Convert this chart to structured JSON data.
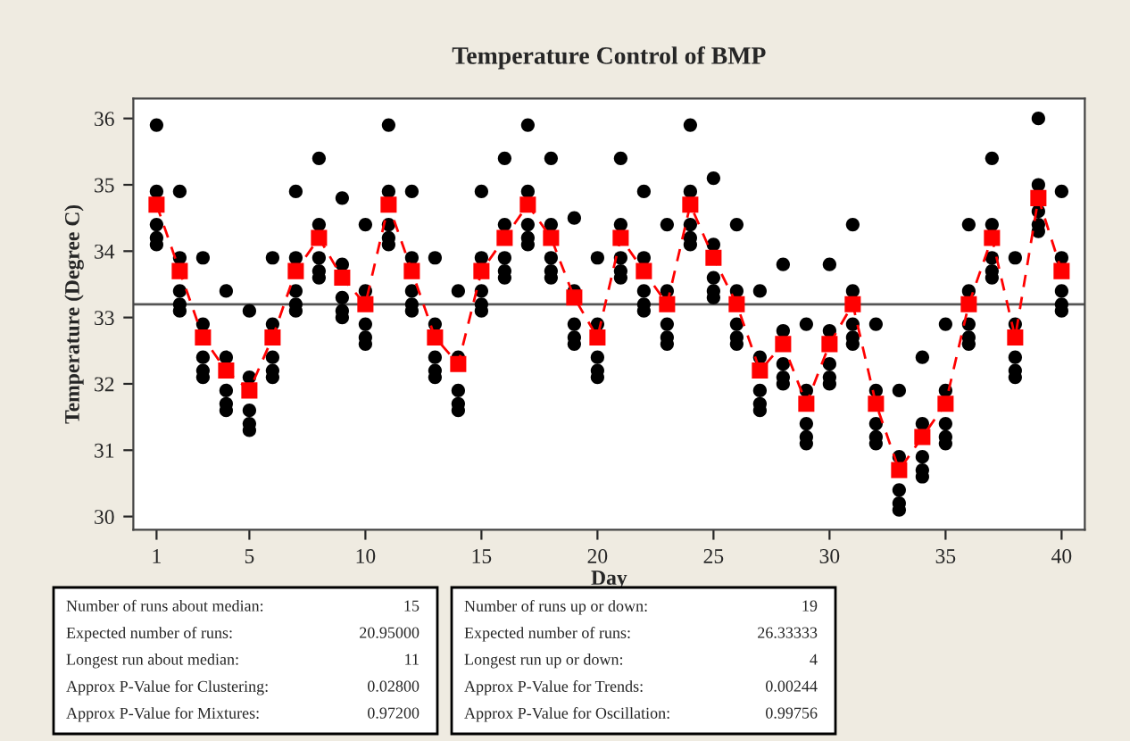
{
  "chart_data": {
    "type": "scatter",
    "title": "Temperature Control of BMP",
    "xlabel": "Day",
    "ylabel": "Temperature (Degree C)",
    "xlim": [
      0,
      41
    ],
    "xticks": [
      1,
      5,
      10,
      15,
      20,
      25,
      30,
      35,
      40
    ],
    "ylim": [
      29.8,
      36.3
    ],
    "yticks": [
      30,
      31,
      32,
      33,
      34,
      35,
      36
    ],
    "grid": false,
    "ref_lines": [
      {
        "axis": "y",
        "value": 33.2,
        "color": "#555555",
        "line_style": "solid"
      }
    ],
    "series": [
      {
        "color": "#000000",
        "marker": "circle",
        "x": [
          1,
          1,
          1,
          1,
          1,
          2,
          2,
          2,
          2,
          2,
          3,
          3,
          3,
          3,
          3,
          4,
          4,
          4,
          4,
          4,
          5,
          5,
          5,
          5,
          5,
          6,
          6,
          6,
          6,
          6,
          7,
          7,
          7,
          7,
          7,
          8,
          8,
          8,
          8,
          8,
          9,
          9,
          9,
          9,
          9,
          10,
          10,
          10,
          10,
          10,
          11,
          11,
          11,
          11,
          11,
          12,
          12,
          12,
          12,
          12,
          13,
          13,
          13,
          13,
          13,
          14,
          14,
          14,
          14,
          14,
          15,
          15,
          15,
          15,
          15,
          16,
          16,
          16,
          16,
          16,
          17,
          17,
          17,
          17,
          17,
          18,
          18,
          18,
          18,
          18,
          19,
          19,
          19,
          19,
          19,
          20,
          20,
          20,
          20,
          20,
          21,
          21,
          21,
          21,
          21,
          22,
          22,
          22,
          22,
          22,
          23,
          23,
          23,
          23,
          23,
          24,
          24,
          24,
          24,
          24,
          25,
          25,
          25,
          25,
          25,
          26,
          26,
          26,
          26,
          26,
          27,
          27,
          27,
          27,
          27,
          28,
          28,
          28,
          28,
          28,
          29,
          29,
          29,
          29,
          29,
          30,
          30,
          30,
          30,
          30,
          31,
          31,
          31,
          31,
          31,
          32,
          32,
          32,
          32,
          32,
          33,
          33,
          33,
          33,
          33,
          34,
          34,
          34,
          34,
          34,
          35,
          35,
          35,
          35,
          35,
          36,
          36,
          36,
          36,
          36,
          37,
          37,
          37,
          37,
          37,
          38,
          38,
          38,
          38,
          38,
          39,
          39,
          39,
          39,
          39,
          40,
          40,
          40,
          40,
          40
        ],
        "values": [
          35.9,
          34.9,
          34.4,
          34.2,
          34.1,
          34.9,
          33.9,
          33.4,
          33.2,
          33.1,
          33.9,
          32.9,
          32.4,
          32.2,
          32.1,
          33.4,
          32.4,
          31.9,
          31.7,
          31.6,
          33.1,
          32.1,
          31.6,
          31.4,
          31.3,
          33.9,
          32.9,
          32.4,
          32.2,
          32.1,
          34.9,
          33.9,
          33.4,
          33.2,
          33.1,
          35.4,
          34.4,
          33.9,
          33.7,
          33.6,
          34.8,
          33.8,
          33.3,
          33.1,
          33.0,
          34.4,
          33.4,
          32.9,
          32.7,
          32.6,
          35.9,
          34.9,
          34.4,
          34.2,
          34.1,
          34.9,
          33.9,
          33.4,
          33.2,
          33.1,
          33.9,
          32.9,
          32.4,
          32.2,
          32.1,
          33.4,
          32.4,
          31.9,
          31.7,
          31.6,
          34.9,
          33.9,
          33.4,
          33.2,
          33.1,
          35.4,
          34.4,
          33.9,
          33.7,
          33.6,
          35.9,
          34.9,
          34.4,
          34.2,
          34.1,
          35.4,
          34.4,
          33.9,
          33.7,
          33.6,
          34.5,
          33.4,
          32.9,
          32.7,
          32.6,
          33.9,
          32.9,
          32.4,
          32.2,
          32.1,
          35.4,
          34.4,
          33.9,
          33.7,
          33.6,
          34.9,
          33.9,
          33.4,
          33.2,
          33.1,
          34.4,
          33.4,
          32.9,
          32.7,
          32.6,
          35.9,
          34.9,
          34.4,
          34.2,
          34.1,
          35.1,
          34.1,
          33.6,
          33.4,
          33.3,
          34.4,
          33.4,
          32.9,
          32.7,
          32.6,
          33.4,
          32.4,
          31.9,
          31.7,
          31.6,
          33.8,
          32.8,
          32.3,
          32.1,
          32.0,
          32.9,
          31.9,
          31.4,
          31.2,
          31.1,
          33.8,
          32.8,
          32.3,
          32.1,
          32.0,
          34.4,
          33.4,
          32.9,
          32.7,
          32.6,
          32.9,
          31.9,
          31.4,
          31.2,
          31.1,
          31.9,
          30.9,
          30.4,
          30.2,
          30.1,
          32.4,
          31.4,
          30.9,
          30.7,
          30.6,
          32.9,
          31.9,
          31.4,
          31.2,
          31.1,
          34.4,
          33.4,
          32.9,
          32.7,
          32.6,
          35.4,
          34.4,
          33.9,
          33.7,
          33.6,
          33.9,
          32.9,
          32.4,
          32.2,
          32.1,
          36.0,
          35.0,
          34.6,
          34.4,
          34.3,
          34.9,
          33.9,
          33.4,
          33.2,
          33.1
        ]
      },
      {
        "type": "line",
        "color": "#ff0000",
        "marker": "square",
        "line_style": "dashed",
        "x": [
          1,
          2,
          3,
          4,
          5,
          6,
          7,
          8,
          9,
          10,
          11,
          12,
          13,
          14,
          15,
          16,
          17,
          18,
          19,
          20,
          21,
          22,
          23,
          24,
          25,
          26,
          27,
          28,
          29,
          30,
          31,
          32,
          33,
          34,
          35,
          36,
          37,
          38,
          39,
          40
        ],
        "values": [
          34.7,
          33.7,
          32.7,
          32.2,
          31.9,
          32.7,
          33.7,
          34.2,
          33.6,
          33.2,
          34.7,
          33.7,
          32.7,
          32.3,
          33.7,
          34.2,
          34.7,
          34.2,
          33.3,
          32.7,
          34.2,
          33.7,
          33.2,
          34.7,
          33.9,
          33.2,
          32.2,
          32.6,
          31.7,
          32.6,
          33.2,
          31.7,
          30.7,
          31.2,
          31.7,
          33.2,
          34.2,
          32.7,
          34.8,
          33.7
        ]
      }
    ],
    "annotations": [
      "Number of runs about median:",
      "15",
      "Expected number of runs:",
      "20.95000",
      "Longest run about median:",
      "11",
      "Approx P-Value for Clustering:",
      "0.02800",
      "Approx P-Value for Mixtures:",
      "0.97200",
      "Number of runs up or down:",
      "19",
      "Expected number of runs:",
      "26.33333",
      "Longest run up or down:",
      "4",
      "Approx P-Value for Trends:",
      "0.00244",
      "Approx P-Value for Oscillation:",
      "0.99756"
    ]
  }
}
